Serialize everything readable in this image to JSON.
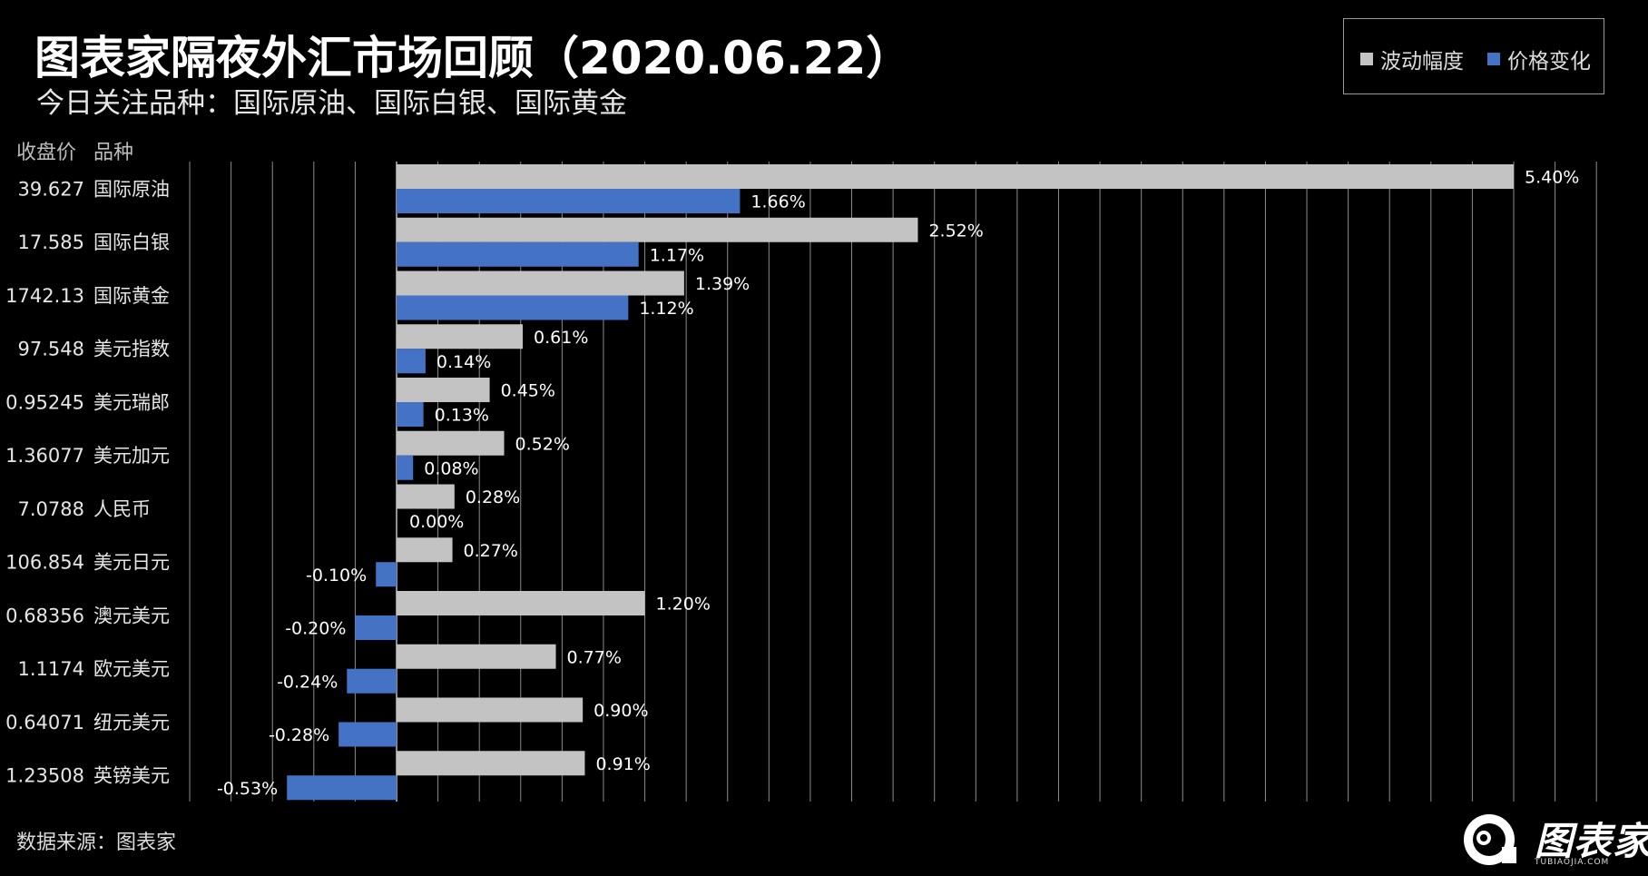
{
  "header": {
    "title": "图表家隔夜外汇市场回顾（2020.06.22）",
    "subtitle": "今日关注品种：国际原油、国际白银、国际黄金"
  },
  "legend": {
    "items": [
      {
        "label": "波动幅度",
        "color": "#c3c3c3"
      },
      {
        "label": "价格变化",
        "color": "#4472c4"
      }
    ]
  },
  "columns": {
    "price_header": "收盘价",
    "name_header": "品种"
  },
  "footer": {
    "source": "数据来源：图表家",
    "brand": "图表家",
    "brand_url": "TUBIAOJIA.COM"
  },
  "chart_data": {
    "type": "bar",
    "orientation": "horizontal",
    "categories": [
      "国际原油",
      "国际白银",
      "国际黄金",
      "美元指数",
      "美元瑞郎",
      "美元加元",
      "人民币",
      "美元日元",
      "澳元美元",
      "欧元美元",
      "纽元美元",
      "英镑美元"
    ],
    "close_prices": [
      "39.627",
      "17.585",
      "1742.13",
      "97.548",
      "0.95245",
      "1.36077",
      "7.0788",
      "106.854",
      "0.68356",
      "1.1174",
      "0.64071",
      "1.23508"
    ],
    "series": [
      {
        "name": "波动幅度",
        "color": "#c3c3c3",
        "values": [
          5.4,
          2.52,
          1.39,
          0.61,
          0.45,
          0.52,
          0.28,
          0.27,
          1.2,
          0.77,
          0.9,
          0.91
        ],
        "labels": [
          "5.40%",
          "2.52%",
          "1.39%",
          "0.61%",
          "0.45%",
          "0.52%",
          "0.28%",
          "0.27%",
          "1.20%",
          "0.77%",
          "0.90%",
          "0.91%"
        ]
      },
      {
        "name": "价格变化",
        "color": "#4472c4",
        "values": [
          1.66,
          1.17,
          1.12,
          0.14,
          0.13,
          0.08,
          0.0,
          -0.1,
          -0.2,
          -0.24,
          -0.28,
          -0.53
        ],
        "labels": [
          "1.66%",
          "1.17%",
          "1.12%",
          "0.14%",
          "0.13%",
          "0.08%",
          "0.00%",
          "-0.10%",
          "-0.20%",
          "-0.24%",
          "-0.28%",
          "-0.53%"
        ]
      }
    ],
    "xlim": [
      -1.0,
      5.8
    ],
    "grid": true,
    "gridline_step": 0.2,
    "legend_position": "top-right"
  }
}
